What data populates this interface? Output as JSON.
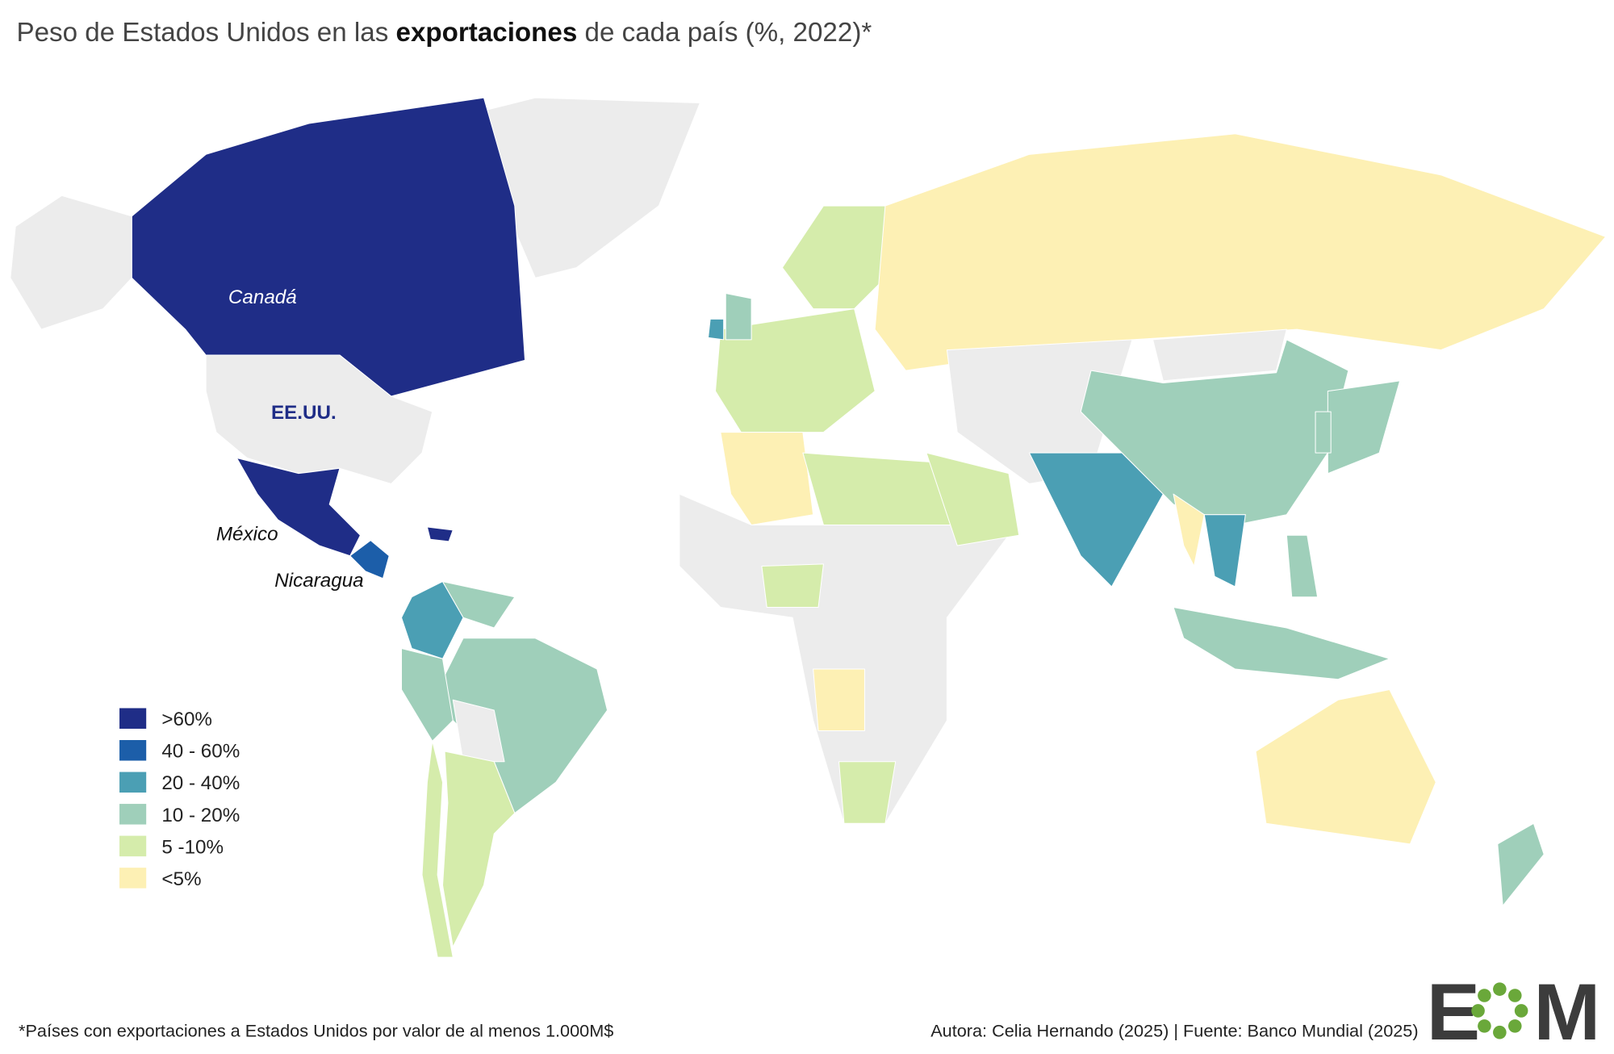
{
  "title": {
    "before": "Peso de Estados Unidos en las ",
    "bold": "exportaciones",
    "after": " de cada país (%, 2022)*"
  },
  "legend": {
    "items": [
      {
        "label": ">60%",
        "color": "#1f2d87"
      },
      {
        "label": "40 - 60%",
        "color": "#1c5ea9"
      },
      {
        "label": "20 - 40%",
        "color": "#4b9fb4"
      },
      {
        "label": "10 - 20%",
        "color": "#9fcfba"
      },
      {
        "label": "5 -10%",
        "color": "#d5ecab"
      },
      {
        "label": "<5%",
        "color": "#fdf0b4"
      }
    ]
  },
  "map_labels": {
    "canada": "Canadá",
    "usa": "EE.UU.",
    "mexico": "México",
    "nicaragua": "Nicaragua"
  },
  "footnote": "*Países con exportaciones a Estados Unidos por valor de al menos 1.000M$",
  "source": "Autora: Celia Hernando (2025) | Fuente: Banco Mundial  (2025)",
  "logo": {
    "left": "E",
    "right": "M"
  }
}
